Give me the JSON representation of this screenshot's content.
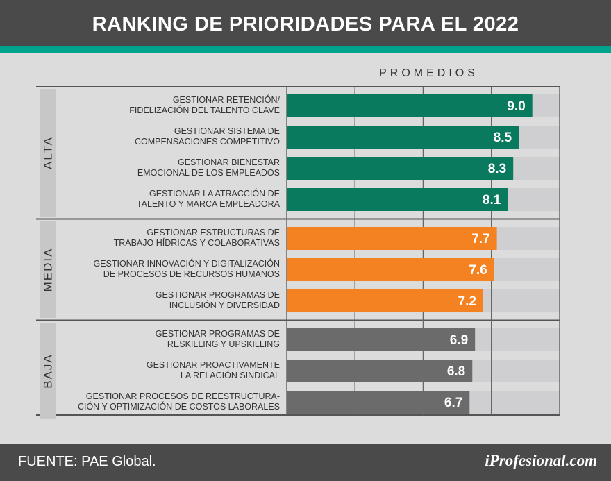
{
  "header": {
    "title": "RANKING DE PRIORIDADES PARA EL 2022"
  },
  "footer": {
    "source": "FUENTE: PAE Global.",
    "brand": "iProfesional.com"
  },
  "colors": {
    "alta": "#0a7a5e",
    "media": "#f58220",
    "baja": "#6b6b6b",
    "track": "#cfcfd1",
    "accent": "#00a38c",
    "header_bg": "#4a4a4a"
  },
  "chart_data": {
    "type": "bar",
    "orientation": "horizontal",
    "axis_title": "PROMEDIOS",
    "xlim": [
      0,
      10
    ],
    "grid": true,
    "groups": [
      {
        "name": "ALTA",
        "color": "#0a7a5e",
        "items": [
          {
            "label": [
              "GESTIONAR RETENCIÓN/",
              "FIDELIZACIÓN DEL TALENTO CLAVE"
            ],
            "value": 9.0,
            "value_label": "9.0"
          },
          {
            "label": [
              "GESTIONAR SISTEMA DE",
              "COMPENSACIONES COMPETITIVO"
            ],
            "value": 8.5,
            "value_label": "8.5"
          },
          {
            "label": [
              "GESTIONAR BIENESTAR",
              "EMOCIONAL DE LOS EMPLEADOS"
            ],
            "value": 8.3,
            "value_label": "8.3"
          },
          {
            "label": [
              "GESTIONAR LA ATRACCIÓN DE",
              "TALENTO Y MARCA EMPLEADORA"
            ],
            "value": 8.1,
            "value_label": "8.1"
          }
        ]
      },
      {
        "name": "MEDIA",
        "color": "#f58220",
        "items": [
          {
            "label": [
              "GESTIONAR ESTRUCTURAS DE",
              "TRABAJO HÍDRICAS Y COLABORATIVAS"
            ],
            "value": 7.7,
            "value_label": "7.7"
          },
          {
            "label": [
              "GESTIONAR INNOVACIÓN Y DIGITALIZACIÓN",
              "DE PROCESOS DE RECURSOS HUMANOS"
            ],
            "value": 7.6,
            "value_label": "7.6"
          },
          {
            "label": [
              "GESTIONAR PROGRAMAS DE",
              "INCLUSIÓN Y DIVERSIDAD"
            ],
            "value": 7.2,
            "value_label": "7.2"
          }
        ]
      },
      {
        "name": "BAJA",
        "color": "#6b6b6b",
        "items": [
          {
            "label": [
              "GESTIONAR PROGRAMAS DE",
              "RESKILLING Y UPSKILLING"
            ],
            "value": 6.9,
            "value_label": "6.9"
          },
          {
            "label": [
              "GESTIONAR PROACTIVAMENTE",
              "LA RELACIÓN SINDICAL"
            ],
            "value": 6.8,
            "value_label": "6.8"
          },
          {
            "label": [
              "GESTIONAR PROCESOS DE REESTRUCTURA-",
              "CIÓN Y OPTIMIZACIÓN DE COSTOS LABORALES"
            ],
            "value": 6.7,
            "value_label": "6.7"
          }
        ]
      }
    ]
  }
}
